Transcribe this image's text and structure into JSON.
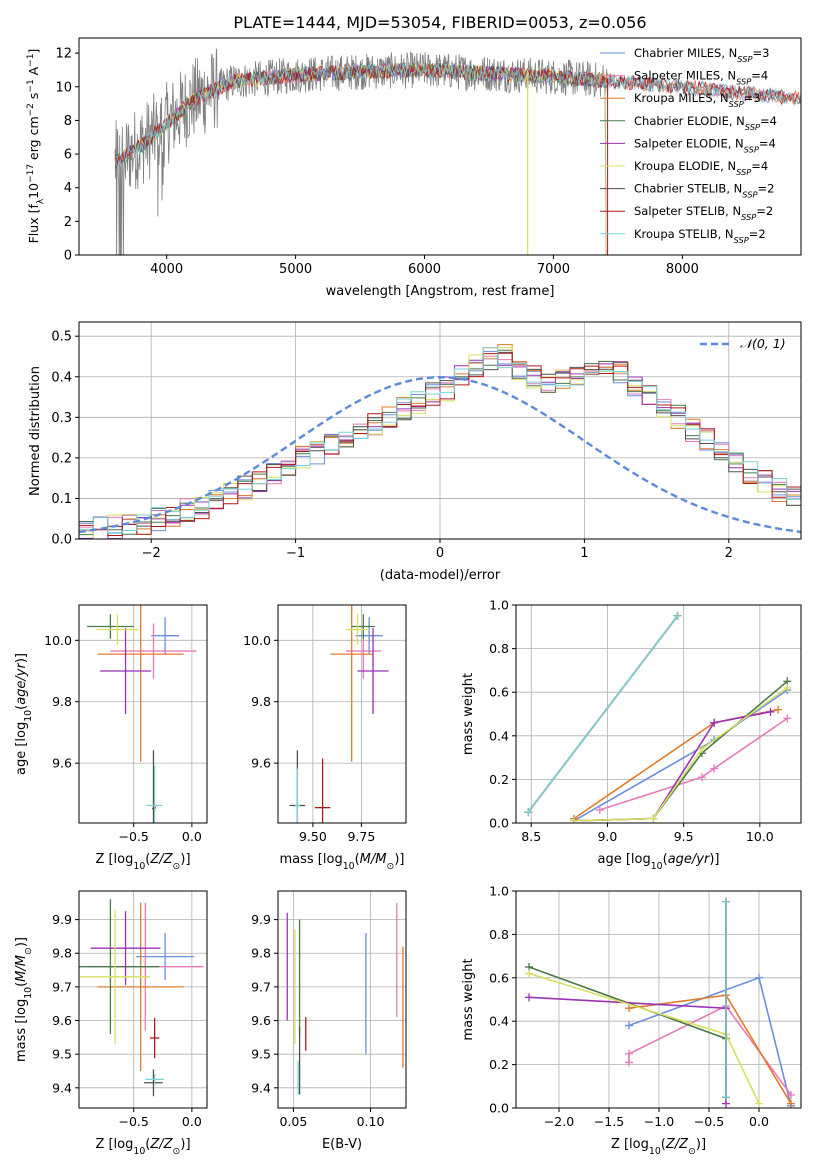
{
  "title": "PLATE=1444, MJD=53054, FIBERID=0053, z=0.056",
  "colors": {
    "chabrier_miles": "#6a8fe0",
    "salpeter_miles": "#e879b9",
    "kroupa_miles": "#e07b2a",
    "chabrier_elodie": "#4a7a4a",
    "salpeter_elodie": "#9a32b5",
    "kroupa_elodie": "#d8e060",
    "chabrier_stelib": "#505050",
    "salpeter_stelib": "#b01818",
    "kroupa_stelib": "#78d4d8",
    "data": "#808080",
    "normal": "#5b8bd9"
  },
  "chart_data": [
    {
      "id": "spectrum",
      "type": "line",
      "xlabel": "wavelength [Angstrom, rest frame]",
      "ylabel": "Flux [fλ10⁻¹⁷ erg cm⁻² s⁻¹ A⁻¹]",
      "xlim": [
        3320,
        8920
      ],
      "ylim": [
        0,
        12.9
      ],
      "xticks": [
        4000,
        5000,
        6000,
        7000,
        8000
      ],
      "yticks": [
        0,
        2,
        4,
        6,
        8,
        10,
        12
      ],
      "data_range": [
        3600,
        7425
      ],
      "continuum_knots": [
        [
          3600,
          5.5
        ],
        [
          3800,
          6.5
        ],
        [
          4000,
          7.8
        ],
        [
          4200,
          9.2
        ],
        [
          4500,
          10.3
        ],
        [
          5000,
          10.7
        ],
        [
          5500,
          10.9
        ],
        [
          6000,
          11.0
        ],
        [
          6500,
          10.8
        ],
        [
          7000,
          10.6
        ],
        [
          7500,
          10.3
        ],
        [
          8000,
          10.0
        ],
        [
          8500,
          9.6
        ],
        [
          8900,
          9.3
        ]
      ],
      "legend_position": "upper-right",
      "legend": [
        "Chabrier MILES, N_SSP=3",
        "Salpeter MILES, N_SSP=4",
        "Kroupa MILES, N_SSP=3",
        "Chabrier ELODIE, N_SSP=4",
        "Salpeter ELODIE, N_SSP=4",
        "Kroupa ELODIE, N_SSP=4",
        "Chabrier STELIB, N_SSP=2",
        "Salpeter STELIB, N_SSP=2",
        "Kroupa STELIB, N_SSP=2"
      ]
    },
    {
      "id": "residuals",
      "type": "histogram",
      "xlabel": "(data-model)/error",
      "ylabel": "Normed distribution",
      "xlim": [
        -2.5,
        2.5
      ],
      "ylim": [
        0,
        0.535
      ],
      "xticks": [
        -2,
        -1,
        0,
        1,
        2
      ],
      "yticks": [
        0.0,
        0.1,
        0.2,
        0.3,
        0.4,
        0.5
      ],
      "bin_width": 0.1,
      "bin_start": -2.5,
      "mean_heights": [
        0.02,
        0.025,
        0.03,
        0.035,
        0.04,
        0.05,
        0.06,
        0.07,
        0.08,
        0.09,
        0.11,
        0.125,
        0.14,
        0.16,
        0.18,
        0.2,
        0.215,
        0.23,
        0.25,
        0.265,
        0.28,
        0.3,
        0.32,
        0.34,
        0.355,
        0.37,
        0.4,
        0.43,
        0.445,
        0.45,
        0.42,
        0.4,
        0.39,
        0.39,
        0.4,
        0.41,
        0.43,
        0.41,
        0.38,
        0.35,
        0.32,
        0.3,
        0.27,
        0.245,
        0.215,
        0.19,
        0.165,
        0.14,
        0.12,
        0.1,
        0.085,
        0.07,
        0.06,
        0.05,
        0.04,
        0.035,
        0.03,
        0.025,
        0.02,
        0.02
      ],
      "legend_label": "𝒩(0, 1)",
      "legend_position": "upper-right"
    },
    {
      "id": "age-vs-z",
      "type": "scatter-errorbar",
      "xlabel": "Z [log10(Z/Z⊙)]",
      "ylabel": "age  [log10(age/yr)]",
      "xlim": [
        -0.97,
        0.13
      ],
      "ylim": [
        9.405,
        10.115
      ],
      "xticks": [
        -0.5,
        0.0
      ],
      "yticks": [
        9.6,
        9.8,
        10.0
      ],
      "tick_format": 1,
      "points": [
        {
          "model": "chabrier_miles",
          "x": -0.23,
          "xe": 0.12,
          "y": 10.015,
          "ye": 0.06
        },
        {
          "model": "salpeter_miles",
          "x": -0.33,
          "xe": 0.37,
          "y": 9.965,
          "ye": 0.09
        },
        {
          "model": "kroupa_miles",
          "x": -0.44,
          "xe": 0.37,
          "y": 9.955,
          "ye": 0.35
        },
        {
          "model": "chabrier_elodie",
          "x": -0.7,
          "xe": 0.2,
          "y": 10.045,
          "ye": 0.04
        },
        {
          "model": "salpeter_elodie",
          "x": -0.57,
          "xe": 0.22,
          "y": 9.9,
          "ye": 0.14
        },
        {
          "model": "kroupa_elodie",
          "x": -0.64,
          "xe": 0.18,
          "y": 10.035,
          "ye": 0.05
        },
        {
          "model": "chabrier_stelib",
          "x": -0.33,
          "xe": 0.012,
          "y": 9.452,
          "ye": 0.19
        },
        {
          "model": "salpeter_stelib",
          "x": -0.32,
          "xe": 0.012,
          "y": 9.455,
          "ye": 0.012
        },
        {
          "model": "kroupa_stelib",
          "x": -0.32,
          "xe": 0.07,
          "y": 9.462,
          "ye": 0.13
        }
      ]
    },
    {
      "id": "age-vs-mass",
      "type": "scatter-errorbar",
      "xlabel": "mass [log10(M/M⊙)]",
      "ylabel": "",
      "xlim": [
        9.32,
        9.98
      ],
      "ylim": [
        9.405,
        10.115
      ],
      "xticks": [
        9.5,
        9.75
      ],
      "yticks": [
        9.6,
        9.8,
        10.0
      ],
      "tick_format": 2,
      "points": [
        {
          "model": "chabrier_miles",
          "x": 9.79,
          "xe": 0.07,
          "y": 10.015,
          "ye": 0.06
        },
        {
          "model": "salpeter_miles",
          "x": 9.76,
          "xe": 0.09,
          "y": 9.965,
          "ye": 0.09
        },
        {
          "model": "kroupa_miles",
          "x": 9.7,
          "xe": 0.11,
          "y": 9.955,
          "ye": 0.35
        },
        {
          "model": "chabrier_elodie",
          "x": 9.76,
          "xe": 0.06,
          "y": 10.045,
          "ye": 0.04
        },
        {
          "model": "salpeter_elodie",
          "x": 9.81,
          "xe": 0.08,
          "y": 9.9,
          "ye": 0.14
        },
        {
          "model": "kroupa_elodie",
          "x": 9.73,
          "xe": 0.06,
          "y": 10.035,
          "ye": 0.05
        },
        {
          "model": "chabrier_stelib",
          "x": 9.42,
          "xe": 0.04,
          "y": 9.462,
          "ye": 0.18
        },
        {
          "model": "salpeter_stelib",
          "x": 9.55,
          "xe": 0.04,
          "y": 9.455,
          "ye": 0.16
        },
        {
          "model": "kroupa_stelib",
          "x": 9.42,
          "xe": 0.012,
          "y": 9.462,
          "ye": 0.12
        }
      ]
    },
    {
      "id": "weight-vs-age",
      "type": "line",
      "xlabel": "age  [log10(age/yr)]",
      "ylabel": "mass weight",
      "xlim": [
        8.4,
        10.27
      ],
      "ylim": [
        0,
        1
      ],
      "xticks": [
        8.5,
        9.0,
        9.5,
        10.0
      ],
      "yticks": [
        0.0,
        0.2,
        0.4,
        0.6,
        0.8,
        1.0
      ],
      "tick_format": 1,
      "series": [
        {
          "model": "chabrier_miles",
          "x": [
            8.78,
            9.7,
            10.18
          ],
          "y": [
            0.01,
            0.38,
            0.61
          ]
        },
        {
          "model": "salpeter_miles",
          "x": [
            8.95,
            9.62,
            9.7,
            10.18
          ],
          "y": [
            0.06,
            0.21,
            0.25,
            0.48
          ]
        },
        {
          "model": "kroupa_miles",
          "x": [
            8.78,
            9.7,
            10.12
          ],
          "y": [
            0.02,
            0.46,
            0.52
          ]
        },
        {
          "model": "chabrier_elodie",
          "x": [
            8.78,
            9.3,
            9.62,
            10.18
          ],
          "y": [
            0.01,
            0.02,
            0.32,
            0.65
          ]
        },
        {
          "model": "salpeter_elodie",
          "x": [
            8.78,
            9.3,
            9.7,
            10.07
          ],
          "y": [
            0.01,
            0.02,
            0.46,
            0.51
          ]
        },
        {
          "model": "kroupa_elodie",
          "x": [
            8.78,
            9.3,
            9.62,
            10.18
          ],
          "y": [
            0.01,
            0.02,
            0.34,
            0.62
          ]
        },
        {
          "model": "chabrier_stelib",
          "x": [
            8.48,
            9.46
          ],
          "y": [
            0.05,
            0.95
          ]
        },
        {
          "model": "salpeter_stelib",
          "x": [
            8.48,
            9.46
          ],
          "y": [
            0.05,
            0.95
          ]
        },
        {
          "model": "kroupa_stelib",
          "x": [
            8.48,
            9.46
          ],
          "y": [
            0.05,
            0.95
          ]
        }
      ]
    },
    {
      "id": "mass-vs-z",
      "type": "scatter-errorbar",
      "xlabel": "Z [log10(Z/Z⊙)]",
      "ylabel": "mass [log10(M/M⊙)]",
      "xlim": [
        -0.97,
        0.13
      ],
      "ylim": [
        9.34,
        9.985
      ],
      "xticks": [
        -0.5,
        0.0
      ],
      "yticks": [
        9.4,
        9.5,
        9.6,
        9.7,
        9.8,
        9.9
      ],
      "tick_format": 1,
      "points": [
        {
          "model": "chabrier_miles",
          "x": -0.23,
          "xe": 0.25,
          "y": 9.79,
          "ye": 0.07
        },
        {
          "model": "salpeter_miles",
          "x": -0.4,
          "xe": 0.5,
          "y": 9.76,
          "ye": 0.19
        },
        {
          "model": "kroupa_miles",
          "x": -0.44,
          "xe": 0.37,
          "y": 9.7,
          "ye": 0.25
        },
        {
          "model": "chabrier_elodie",
          "x": -0.7,
          "xe": 0.42,
          "y": 9.76,
          "ye": 0.2
        },
        {
          "model": "salpeter_elodie",
          "x": -0.57,
          "xe": 0.3,
          "y": 9.815,
          "ye": 0.11
        },
        {
          "model": "kroupa_elodie",
          "x": -0.66,
          "xe": 0.3,
          "y": 9.73,
          "ye": 0.2
        },
        {
          "model": "chabrier_stelib",
          "x": -0.33,
          "xe": 0.08,
          "y": 9.415,
          "ye": 0.04
        },
        {
          "model": "salpeter_stelib",
          "x": -0.32,
          "xe": 0.04,
          "y": 9.548,
          "ye": 0.06
        },
        {
          "model": "kroupa_stelib",
          "x": -0.32,
          "xe": 0.08,
          "y": 9.425,
          "ye": 0.015
        }
      ]
    },
    {
      "id": "mass-vs-ebv",
      "type": "scatter-errorbar",
      "xlabel": "E(B-V)",
      "ylabel": "",
      "xlim": [
        0.04,
        0.123
      ],
      "ylim": [
        9.34,
        9.985
      ],
      "xticks": [
        0.05,
        0.1
      ],
      "yticks": [
        9.4,
        9.5,
        9.6,
        9.7,
        9.8,
        9.9
      ],
      "tick_format": 2,
      "points": [
        {
          "model": "chabrier_miles",
          "x": 0.097,
          "xe": 0,
          "y": 9.68,
          "ye": 0.18
        },
        {
          "model": "salpeter_miles",
          "x": 0.117,
          "xe": 0,
          "y": 9.78,
          "ye": 0.17
        },
        {
          "model": "kroupa_miles",
          "x": 0.121,
          "xe": 0,
          "y": 9.64,
          "ye": 0.18
        },
        {
          "model": "chabrier_elodie",
          "x": 0.054,
          "xe": 0,
          "y": 9.73,
          "ye": 0.17
        },
        {
          "model": "salpeter_elodie",
          "x": 0.046,
          "xe": 0,
          "y": 9.76,
          "ye": 0.16
        },
        {
          "model": "kroupa_elodie",
          "x": 0.051,
          "xe": 0,
          "y": 9.7,
          "ye": 0.17
        },
        {
          "model": "chabrier_stelib",
          "x": 0.054,
          "xe": 0,
          "y": 9.48,
          "ye": 0.1
        },
        {
          "model": "salpeter_stelib",
          "x": 0.058,
          "xe": 0,
          "y": 9.56,
          "ye": 0.05
        },
        {
          "model": "kroupa_stelib",
          "x": 0.053,
          "xe": 0,
          "y": 9.43,
          "ye": 0.05
        }
      ]
    },
    {
      "id": "weight-vs-z",
      "type": "line",
      "xlabel": "Z [log10(Z/Z⊙)]",
      "ylabel": "mass weight",
      "xlim": [
        -2.43,
        0.42
      ],
      "ylim": [
        0,
        1
      ],
      "xticks": [
        -2.0,
        -1.5,
        -1.0,
        -0.5,
        0.0
      ],
      "yticks": [
        0.0,
        0.2,
        0.4,
        0.6,
        0.8,
        1.0
      ],
      "tick_format": 1,
      "series": [
        {
          "model": "chabrier_miles",
          "x": [
            -1.3,
            0.0,
            0.32
          ],
          "y": [
            0.38,
            0.6,
            0.01
          ]
        },
        {
          "model": "salpeter_miles",
          "x": [
            -1.3,
            -1.3,
            -0.33,
            0.32
          ],
          "y": [
            0.21,
            0.25,
            0.47,
            0.06
          ]
        },
        {
          "model": "kroupa_miles",
          "x": [
            -1.3,
            -0.33,
            0.32
          ],
          "y": [
            0.46,
            0.52,
            0.02
          ]
        },
        {
          "model": "chabrier_elodie",
          "x": [
            -2.3,
            -0.33,
            -0.33
          ],
          "y": [
            0.65,
            0.32,
            0.05
          ]
        },
        {
          "model": "salpeter_elodie",
          "x": [
            -2.3,
            -0.33,
            -0.33
          ],
          "y": [
            0.51,
            0.46,
            0.02
          ]
        },
        {
          "model": "kroupa_elodie",
          "x": [
            -2.3,
            -0.33,
            0.0
          ],
          "y": [
            0.62,
            0.34,
            0.02
          ]
        },
        {
          "model": "chabrier_stelib",
          "x": [
            -0.33,
            -0.33
          ],
          "y": [
            0.05,
            0.95
          ]
        },
        {
          "model": "salpeter_stelib",
          "x": [
            -0.33,
            -0.33
          ],
          "y": [
            0.05,
            0.95
          ]
        },
        {
          "model": "kroupa_stelib",
          "x": [
            -0.33,
            -0.33
          ],
          "y": [
            0.05,
            0.95
          ]
        }
      ]
    }
  ]
}
